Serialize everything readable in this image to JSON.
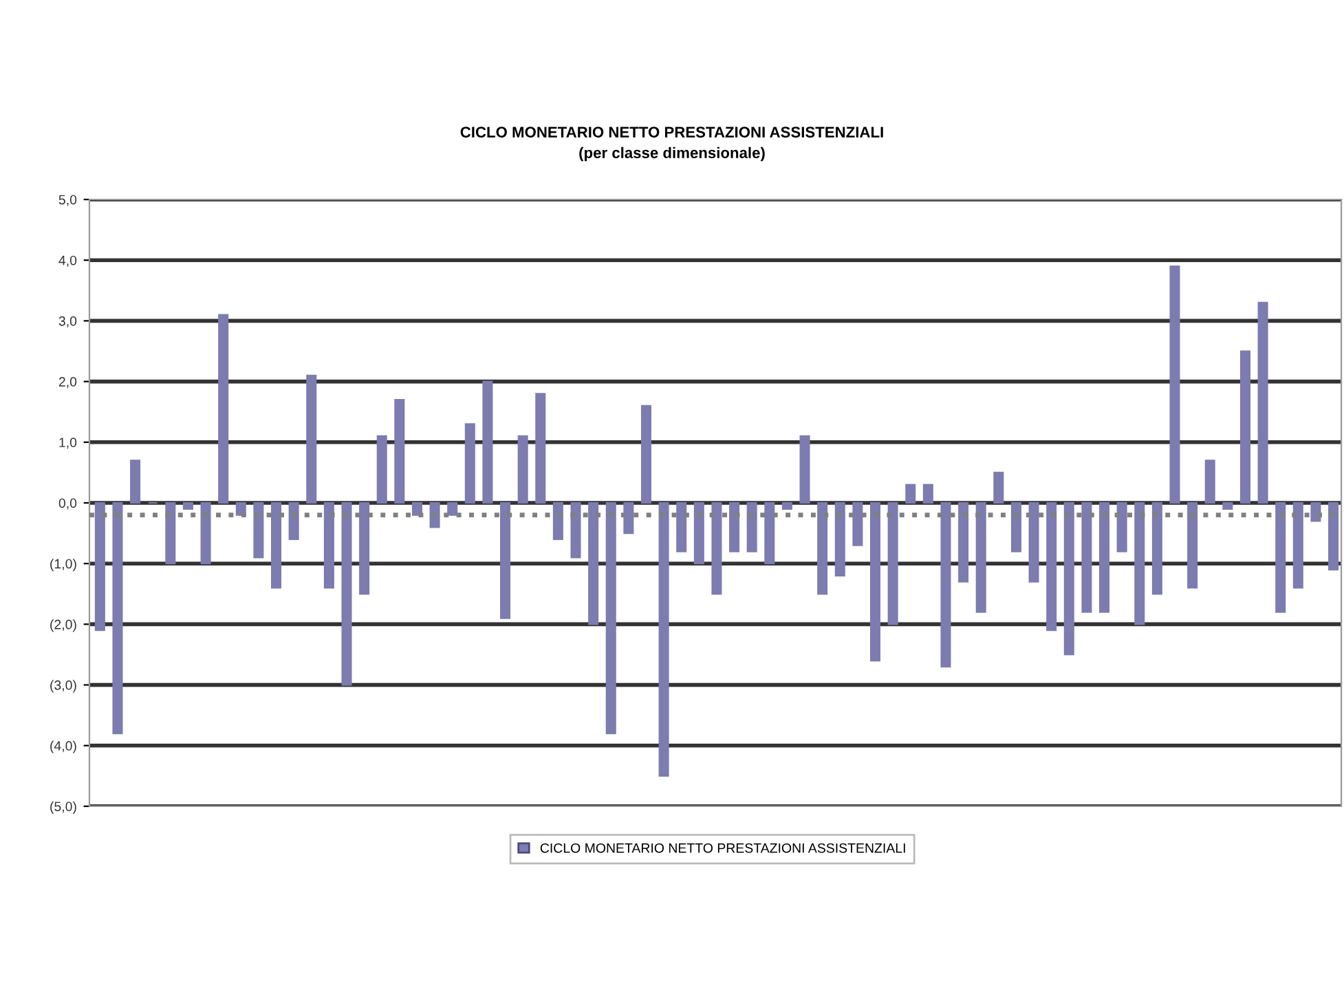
{
  "chart_data": {
    "type": "bar",
    "title": "CICLO MONETARIO NETTO PRESTAZIONI ASSISTENZIALI",
    "subtitle": "(per classe dimensionale)",
    "categories": [
      null,
      null,
      null,
      null,
      null,
      null,
      null,
      null,
      null,
      null,
      null,
      null,
      null,
      null,
      null,
      null,
      null,
      null,
      null,
      null,
      null,
      null,
      null,
      null,
      null,
      null,
      null,
      null,
      null,
      null,
      null,
      null,
      null,
      null,
      null,
      null,
      null,
      null,
      null,
      null,
      null,
      null,
      null,
      null,
      null,
      null,
      null,
      null,
      null,
      null,
      null,
      null,
      null,
      null,
      null,
      null,
      null,
      null,
      null,
      null,
      null,
      null,
      null,
      null,
      null,
      null,
      null,
      null,
      null,
      null,
      null
    ],
    "series": [
      {
        "name": "CICLO MONETARIO NETTO PRESTAZIONI ASSISTENZIALI",
        "color": "#7c7cb0",
        "values": [
          -2.1,
          -3.8,
          0.7,
          0.0,
          -1.0,
          -0.1,
          -1.0,
          3.1,
          -0.2,
          -0.9,
          -1.4,
          -0.6,
          2.1,
          -1.4,
          -3.0,
          -1.5,
          1.1,
          1.7,
          -0.2,
          -0.4,
          -0.2,
          1.3,
          2.0,
          -1.9,
          1.1,
          1.8,
          -0.6,
          -0.9,
          -2.0,
          -3.8,
          -0.5,
          1.6,
          -4.5,
          -0.8,
          -1.0,
          -1.5,
          -0.8,
          -0.8,
          -1.0,
          -0.1,
          1.1,
          -1.5,
          -1.2,
          -0.7,
          -2.6,
          -2.0,
          0.3,
          0.3,
          -2.7,
          -1.3,
          -1.8,
          0.5,
          -0.8,
          -1.3,
          -2.1,
          -2.5,
          -1.8,
          -1.8,
          -0.8,
          -2.0,
          -1.5,
          3.9,
          -1.4,
          0.7,
          -0.1,
          2.5,
          3.3,
          -1.8,
          -1.4,
          -0.3,
          -1.1
        ]
      }
    ],
    "ylim": [
      -5,
      5
    ],
    "yticks": [
      {
        "value": 5,
        "label": "5,0"
      },
      {
        "value": 4,
        "label": "4,0"
      },
      {
        "value": 3,
        "label": "3,0"
      },
      {
        "value": 2,
        "label": "2,0"
      },
      {
        "value": 1,
        "label": "1,0"
      },
      {
        "value": 0,
        "label": "0,0"
      },
      {
        "value": -1,
        "label": "(1,0)"
      },
      {
        "value": -2,
        "label": "(2,0)"
      },
      {
        "value": -3,
        "label": "(3,0)"
      },
      {
        "value": -4,
        "label": "(4,0)"
      },
      {
        "value": -5,
        "label": "(5,0)"
      }
    ],
    "grid": "y",
    "legend": "bottom",
    "ref_lines": [
      {
        "axis": "y",
        "value": -0.2,
        "label": null,
        "color": "#808080",
        "line_style": "dotted"
      }
    ]
  }
}
